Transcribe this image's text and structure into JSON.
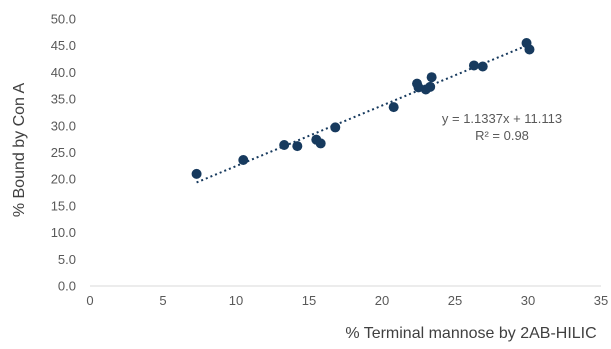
{
  "chart_data": {
    "type": "scatter",
    "xlabel": "% Terminal mannose by 2AB-HILIC",
    "ylabel": "% Bound by Con A",
    "xlim": [
      0,
      35
    ],
    "ylim": [
      0.0,
      50.0
    ],
    "x_ticks": [
      "0",
      "5",
      "10",
      "15",
      "20",
      "25",
      "30",
      "35"
    ],
    "y_ticks": [
      "0.0",
      "5.0",
      "10.0",
      "15.0",
      "20.0",
      "25.0",
      "30.0",
      "35.0",
      "40.0",
      "45.0",
      "50.0"
    ],
    "grid": false,
    "series": [
      {
        "points": [
          {
            "x": 7.3,
            "y": 21.0
          },
          {
            "x": 10.5,
            "y": 23.6
          },
          {
            "x": 13.3,
            "y": 26.4
          },
          {
            "x": 14.2,
            "y": 26.2
          },
          {
            "x": 15.5,
            "y": 27.4
          },
          {
            "x": 15.8,
            "y": 26.7
          },
          {
            "x": 16.8,
            "y": 29.7
          },
          {
            "x": 20.8,
            "y": 33.5
          },
          {
            "x": 22.4,
            "y": 37.9
          },
          {
            "x": 22.5,
            "y": 37.2
          },
          {
            "x": 23.0,
            "y": 36.8
          },
          {
            "x": 23.3,
            "y": 37.3
          },
          {
            "x": 23.4,
            "y": 39.1
          },
          {
            "x": 26.3,
            "y": 41.3
          },
          {
            "x": 26.9,
            "y": 41.1
          },
          {
            "x": 29.9,
            "y": 45.5
          },
          {
            "x": 30.1,
            "y": 44.3
          }
        ]
      }
    ],
    "trendline": {
      "slope": 1.1337,
      "intercept": 11.113,
      "x_range": [
        7.3,
        30.1
      ],
      "style": "dotted"
    },
    "annotations": {
      "equation": "y = 1.1337x + 11.113",
      "r_squared": "R² = 0.98"
    }
  },
  "colors": {
    "marker": "#173a5e",
    "trendline": "#173a5e",
    "axis": "#d9d9d9",
    "text": "#595959"
  }
}
